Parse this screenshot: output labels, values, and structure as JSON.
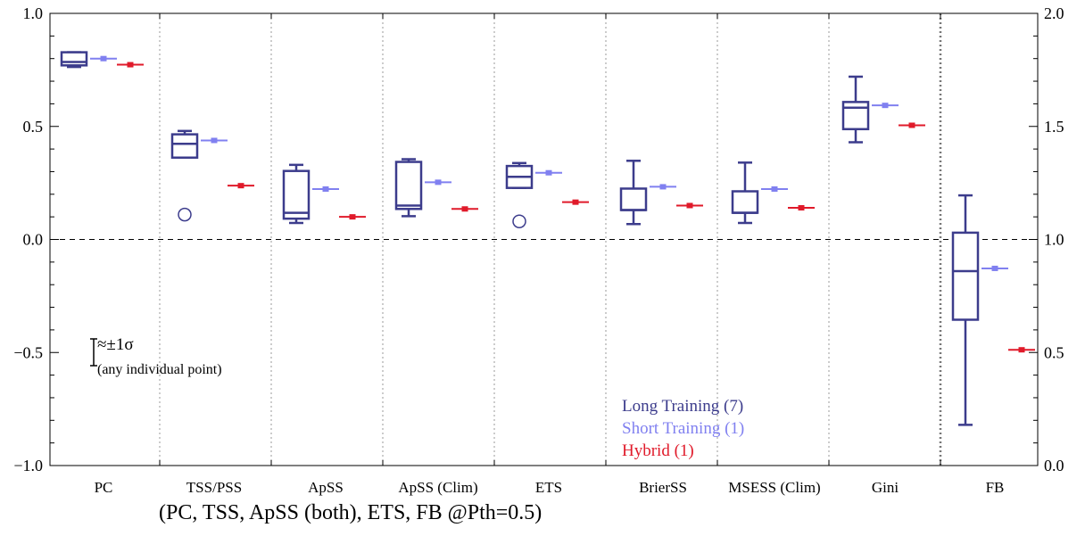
{
  "chart_data": {
    "type": "box",
    "categories": [
      "PC",
      "TSS/PSS",
      "ApSS",
      "ApSS (Clim)",
      "ETS",
      "BrierSS",
      "MSESS (Clim)",
      "Gini",
      "FB"
    ],
    "left_axis": {
      "ylim": [
        -1.0,
        1.0
      ],
      "ticks": [
        "−1.0",
        "−0.5",
        "0.0",
        "0.5",
        "1.0"
      ],
      "tick_values": [
        -1.0,
        -0.5,
        0.0,
        0.5,
        1.0
      ]
    },
    "right_axis": {
      "ylim": [
        0.0,
        2.0
      ],
      "ticks": [
        "0.0",
        "0.5",
        "1.0",
        "1.5",
        "2.0"
      ],
      "tick_values": [
        0.0,
        0.5,
        1.0,
        1.5,
        2.0
      ],
      "applies_to": "FB"
    },
    "reference_line": {
      "y": 0.0,
      "style": "dashed"
    },
    "series": [
      {
        "name": "Long Training (7)",
        "color": "#3c3c8c",
        "type": "box",
        "boxes": [
          {
            "category": "PC",
            "whisker_low": 0.763,
            "q1": 0.77,
            "median": 0.785,
            "q3": 0.828,
            "whisker_high": 0.828
          },
          {
            "category": "TSS/PSS",
            "whisker_low": 0.362,
            "q1": 0.362,
            "median": 0.423,
            "q3": 0.465,
            "whisker_high": 0.48,
            "outliers": [
              0.11
            ]
          },
          {
            "category": "ApSS",
            "whisker_low": 0.073,
            "q1": 0.092,
            "median": 0.118,
            "q3": 0.303,
            "whisker_high": 0.33
          },
          {
            "category": "ApSS (Clim)",
            "whisker_low": 0.103,
            "q1": 0.135,
            "median": 0.15,
            "q3": 0.343,
            "whisker_high": 0.355
          },
          {
            "category": "ETS",
            "whisker_low": 0.228,
            "q1": 0.228,
            "median": 0.277,
            "q3": 0.325,
            "whisker_high": 0.338,
            "outliers": [
              0.08
            ]
          },
          {
            "category": "BrierSS",
            "whisker_low": 0.068,
            "q1": 0.13,
            "median": 0.13,
            "q3": 0.225,
            "whisker_high": 0.348
          },
          {
            "category": "MSESS (Clim)",
            "whisker_low": 0.073,
            "q1": 0.118,
            "median": 0.118,
            "q3": 0.213,
            "whisker_high": 0.34
          },
          {
            "category": "Gini",
            "whisker_low": 0.43,
            "q1": 0.488,
            "median": 0.583,
            "q3": 0.608,
            "whisker_high": 0.72
          },
          {
            "category": "FB",
            "whisker_low": -0.82,
            "q1": -0.355,
            "median": -0.14,
            "q3": 0.03,
            "whisker_high": 0.195
          }
        ]
      },
      {
        "name": "Short Training (1)",
        "color": "#8080f0",
        "type": "point",
        "values": [
          0.8,
          0.438,
          0.223,
          0.253,
          0.295,
          0.233,
          0.223,
          0.593,
          -0.128
        ]
      },
      {
        "name": "Hybrid (1)",
        "color": "#e01a2a",
        "type": "point",
        "values": [
          0.773,
          0.238,
          0.1,
          0.135,
          0.165,
          0.15,
          0.14,
          0.505,
          -0.488
        ]
      }
    ],
    "legend": {
      "position": "bottom-right"
    },
    "sigma_note": {
      "symbol": "≈±1σ",
      "text": "(any individual point)",
      "half_height": 0.035
    },
    "caption": "(PC, TSS, ApSS (both), ETS, FB @Pth=0.5)"
  }
}
